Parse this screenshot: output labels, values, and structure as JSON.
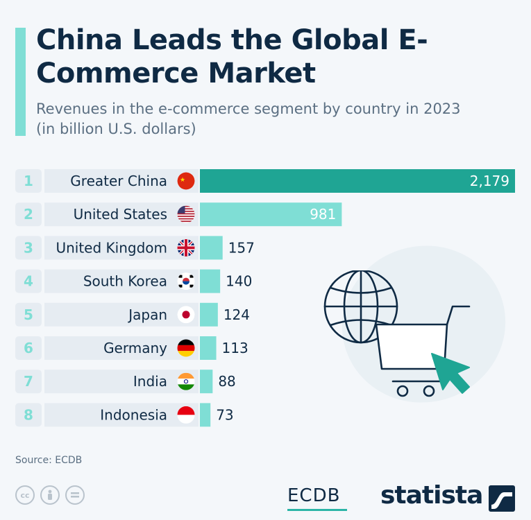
{
  "header": {
    "title": "China Leads the Global E-Commerce Market",
    "subtitle": "Revenues in the e-commerce segment by country in 2023 (in billion U.S. dollars)"
  },
  "chart_data": {
    "type": "bar",
    "orientation": "horizontal",
    "categories": [
      "Greater China",
      "United States",
      "United Kingdom",
      "South Korea",
      "Japan",
      "Germany",
      "India",
      "Indonesia"
    ],
    "ranks": [
      "1",
      "2",
      "3",
      "4",
      "5",
      "6",
      "7",
      "8"
    ],
    "values": [
      2179,
      981,
      157,
      140,
      124,
      113,
      88,
      73
    ],
    "value_labels": [
      "2,179",
      "981",
      "157",
      "140",
      "124",
      "113",
      "88",
      "73"
    ],
    "flags": [
      "flag-china-icon",
      "flag-usa-icon",
      "flag-uk-icon",
      "flag-south-korea-icon",
      "flag-japan-icon",
      "flag-germany-icon",
      "flag-india-icon",
      "flag-indonesia-icon"
    ],
    "colors": {
      "highlight": "#1fa594",
      "bar": "#7fded5",
      "rank": "#7fded5",
      "text": "#0f2a44"
    },
    "xlim": [
      0,
      2179
    ],
    "grid": false,
    "legend": "none"
  },
  "footer": {
    "source": "Source: ECDB",
    "partner_logo": "ECDB",
    "brand_logo": "statista"
  }
}
